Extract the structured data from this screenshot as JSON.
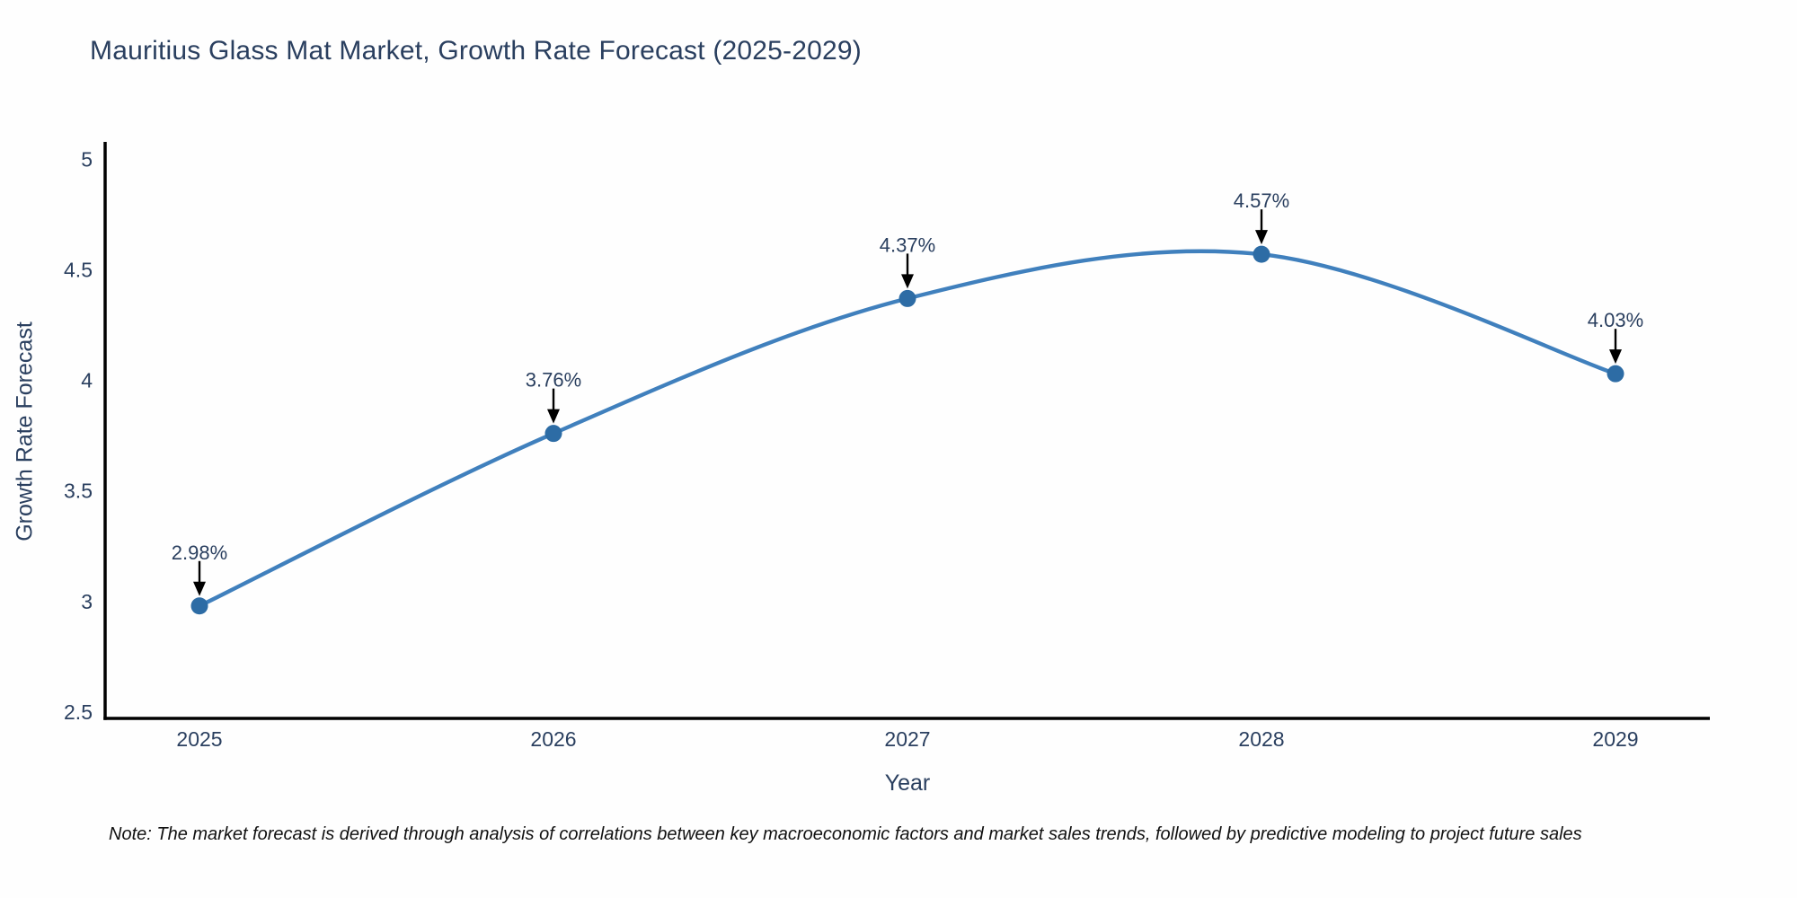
{
  "title": "Mauritius Glass Mat Market, Growth Rate Forecast (2025-2029)",
  "note": "Note: The market forecast is derived through analysis of correlations between key macroeconomic factors and market sales trends, followed by predictive modeling to project future sales",
  "colors": {
    "background": "#fefefe",
    "line": "#4080bd",
    "marker": "#2d6ca5",
    "axis_line": "#000000",
    "tick_text": "#2a3f5f",
    "title_text": "#2a3f5f",
    "annotation_text": "#2a3f5f",
    "annotation_arrow": "#000000",
    "note_text": "#111111"
  },
  "chart_data": {
    "type": "line",
    "line_shape": "spline",
    "markers": true,
    "grid": false,
    "legend": "none",
    "title": "Mauritius Glass Mat Market, Growth Rate Forecast (2025-2029)",
    "xlabel": "Year",
    "ylabel": "Growth Rate Forecast",
    "x": [
      2025,
      2026,
      2027,
      2028,
      2029
    ],
    "xticks": [
      "2025",
      "2026",
      "2027",
      "2028",
      "2029"
    ],
    "series": [
      {
        "name": "Growth Rate Forecast",
        "values": [
          2.98,
          3.76,
          4.37,
          4.57,
          4.03
        ]
      }
    ],
    "point_labels": [
      "2.98%",
      "3.76%",
      "4.37%",
      "4.57%",
      "4.03%"
    ],
    "ylim": [
      2.47,
      5.08
    ],
    "yticks": [
      2.5,
      3,
      3.5,
      4,
      4.5,
      5
    ]
  }
}
